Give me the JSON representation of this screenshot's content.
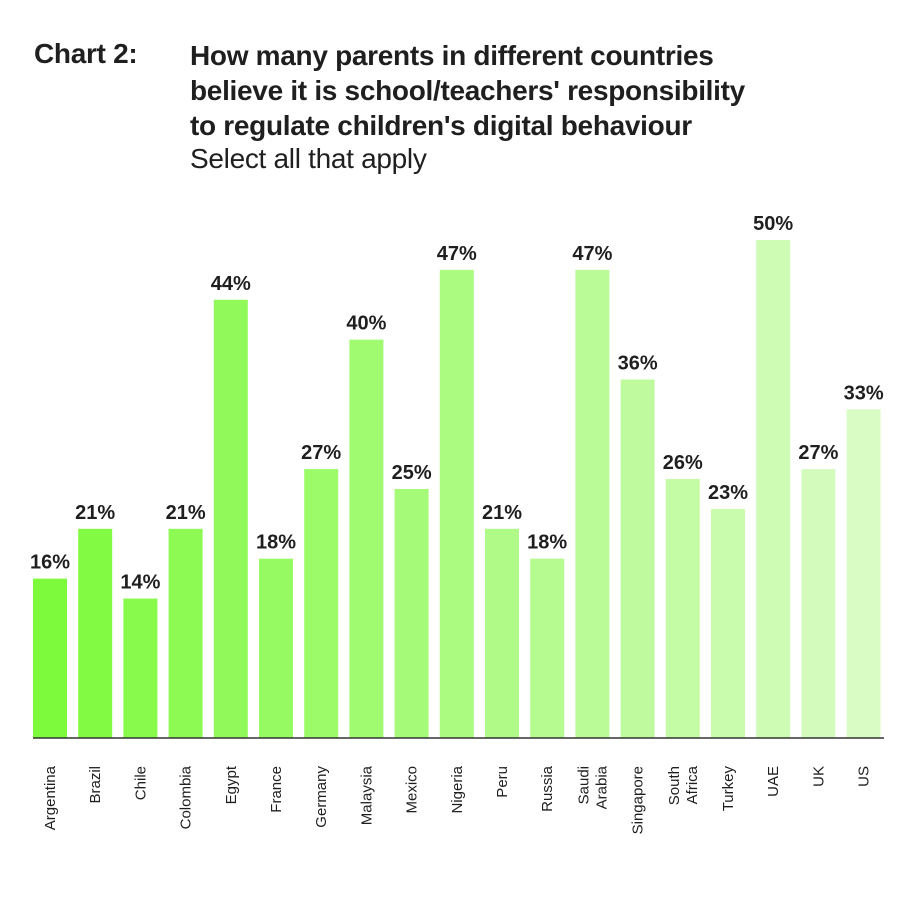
{
  "header": {
    "chart_number": "Chart 2:",
    "title_lines": [
      "How many parents in different countries",
      "believe it is school/teachers' responsibility",
      "to regulate children's digital behaviour"
    ],
    "subtitle": "Select all that apply"
  },
  "colors": {
    "bar_start": "#7dfa3c",
    "bar_end": "#d8fcc4",
    "axis": "#333333"
  },
  "chart_data": {
    "type": "bar",
    "title": "How many parents in different countries believe it is school/teachers' responsibility to regulate children's digital behaviour",
    "subtitle": "Select all that apply",
    "categories": [
      [
        "Argentina"
      ],
      [
        "Brazil"
      ],
      [
        "Chile"
      ],
      [
        "Colombia"
      ],
      [
        "Egypt"
      ],
      [
        "France"
      ],
      [
        "Germany"
      ],
      [
        "Malaysia"
      ],
      [
        "Mexico"
      ],
      [
        "Nigeria"
      ],
      [
        "Peru"
      ],
      [
        "Russia"
      ],
      [
        "Saudi",
        "Arabia"
      ],
      [
        "Singapore"
      ],
      [
        "South",
        "Africa"
      ],
      [
        "Turkey"
      ],
      [
        "UAE"
      ],
      [
        "UK"
      ],
      [
        "US"
      ]
    ],
    "values": [
      16,
      21,
      14,
      21,
      44,
      18,
      27,
      40,
      25,
      47,
      21,
      18,
      47,
      36,
      26,
      23,
      50,
      27,
      33
    ],
    "value_labels": [
      "16%",
      "21%",
      "14%",
      "21%",
      "44%",
      "18%",
      "27%",
      "40%",
      "25%",
      "47%",
      "21%",
      "18%",
      "47%",
      "36%",
      "26%",
      "23%",
      "50%",
      "27%",
      "33%"
    ],
    "unit": "%",
    "ylim": [
      0,
      50
    ],
    "grid": false,
    "legend": "none"
  }
}
